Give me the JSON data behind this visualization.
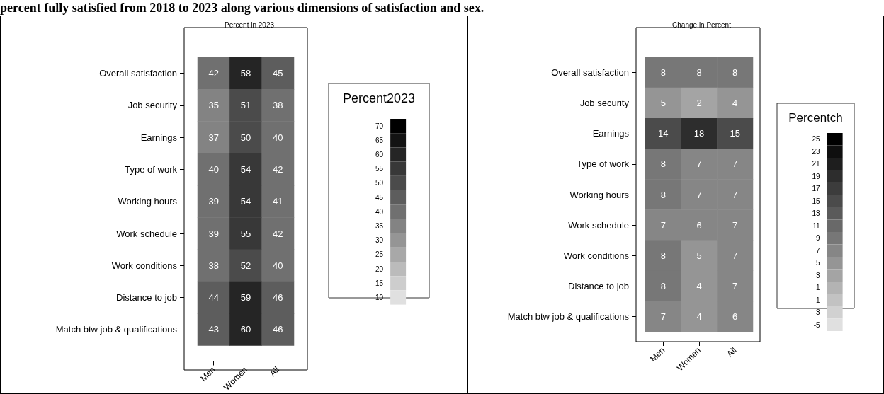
{
  "chart_data": [
    {
      "type": "heatmap",
      "title": "Percent in 2023",
      "annotations": [
        "percent fully satisfied from 2018 to 2023 along various dimensions of satisfaction and sex."
      ],
      "legend_title": "Percent2023",
      "categories": [
        "Men",
        "Women",
        "All"
      ],
      "y_categories": [
        "Overall satisfaction",
        "Job security",
        "Earnings",
        "Type of work",
        "Working hours",
        "Work schedule",
        "Work conditions",
        "Distance to job",
        "Match btw job & qualifications"
      ],
      "cells": [
        [
          42,
          58,
          45
        ],
        [
          35,
          51,
          38
        ],
        [
          37,
          50,
          40
        ],
        [
          40,
          54,
          42
        ],
        [
          39,
          54,
          41
        ],
        [
          39,
          55,
          42
        ],
        [
          38,
          52,
          40
        ],
        [
          44,
          59,
          46
        ],
        [
          43,
          60,
          46
        ]
      ],
      "clim": [
        7.5,
        72.5
      ],
      "cticks": [
        10,
        15,
        20,
        25,
        30,
        35,
        40,
        45,
        50,
        55,
        60,
        65,
        70
      ],
      "data_labels": true
    },
    {
      "type": "heatmap",
      "title": "Change in Percent",
      "legend_title": "Percentch",
      "categories": [
        "Men",
        "Women",
        "All"
      ],
      "y_categories": [
        "Overall satisfaction",
        "Job security",
        "Earnings",
        "Type of work",
        "Working hours",
        "Work schedule",
        "Work conditions",
        "Distance to job",
        "Match btw job & qualifications"
      ],
      "cells": [
        [
          8,
          8,
          8
        ],
        [
          5,
          2,
          4
        ],
        [
          14,
          18,
          15
        ],
        [
          8,
          7,
          7
        ],
        [
          8,
          7,
          7
        ],
        [
          7,
          6,
          7
        ],
        [
          8,
          5,
          7
        ],
        [
          8,
          4,
          7
        ],
        [
          7,
          4,
          6
        ]
      ],
      "clim": [
        -6,
        26
      ],
      "cticks": [
        -5,
        -3,
        -1,
        1,
        3,
        5,
        7,
        9,
        11,
        13,
        15,
        17,
        19,
        21,
        23,
        25
      ],
      "data_labels": true
    }
  ]
}
